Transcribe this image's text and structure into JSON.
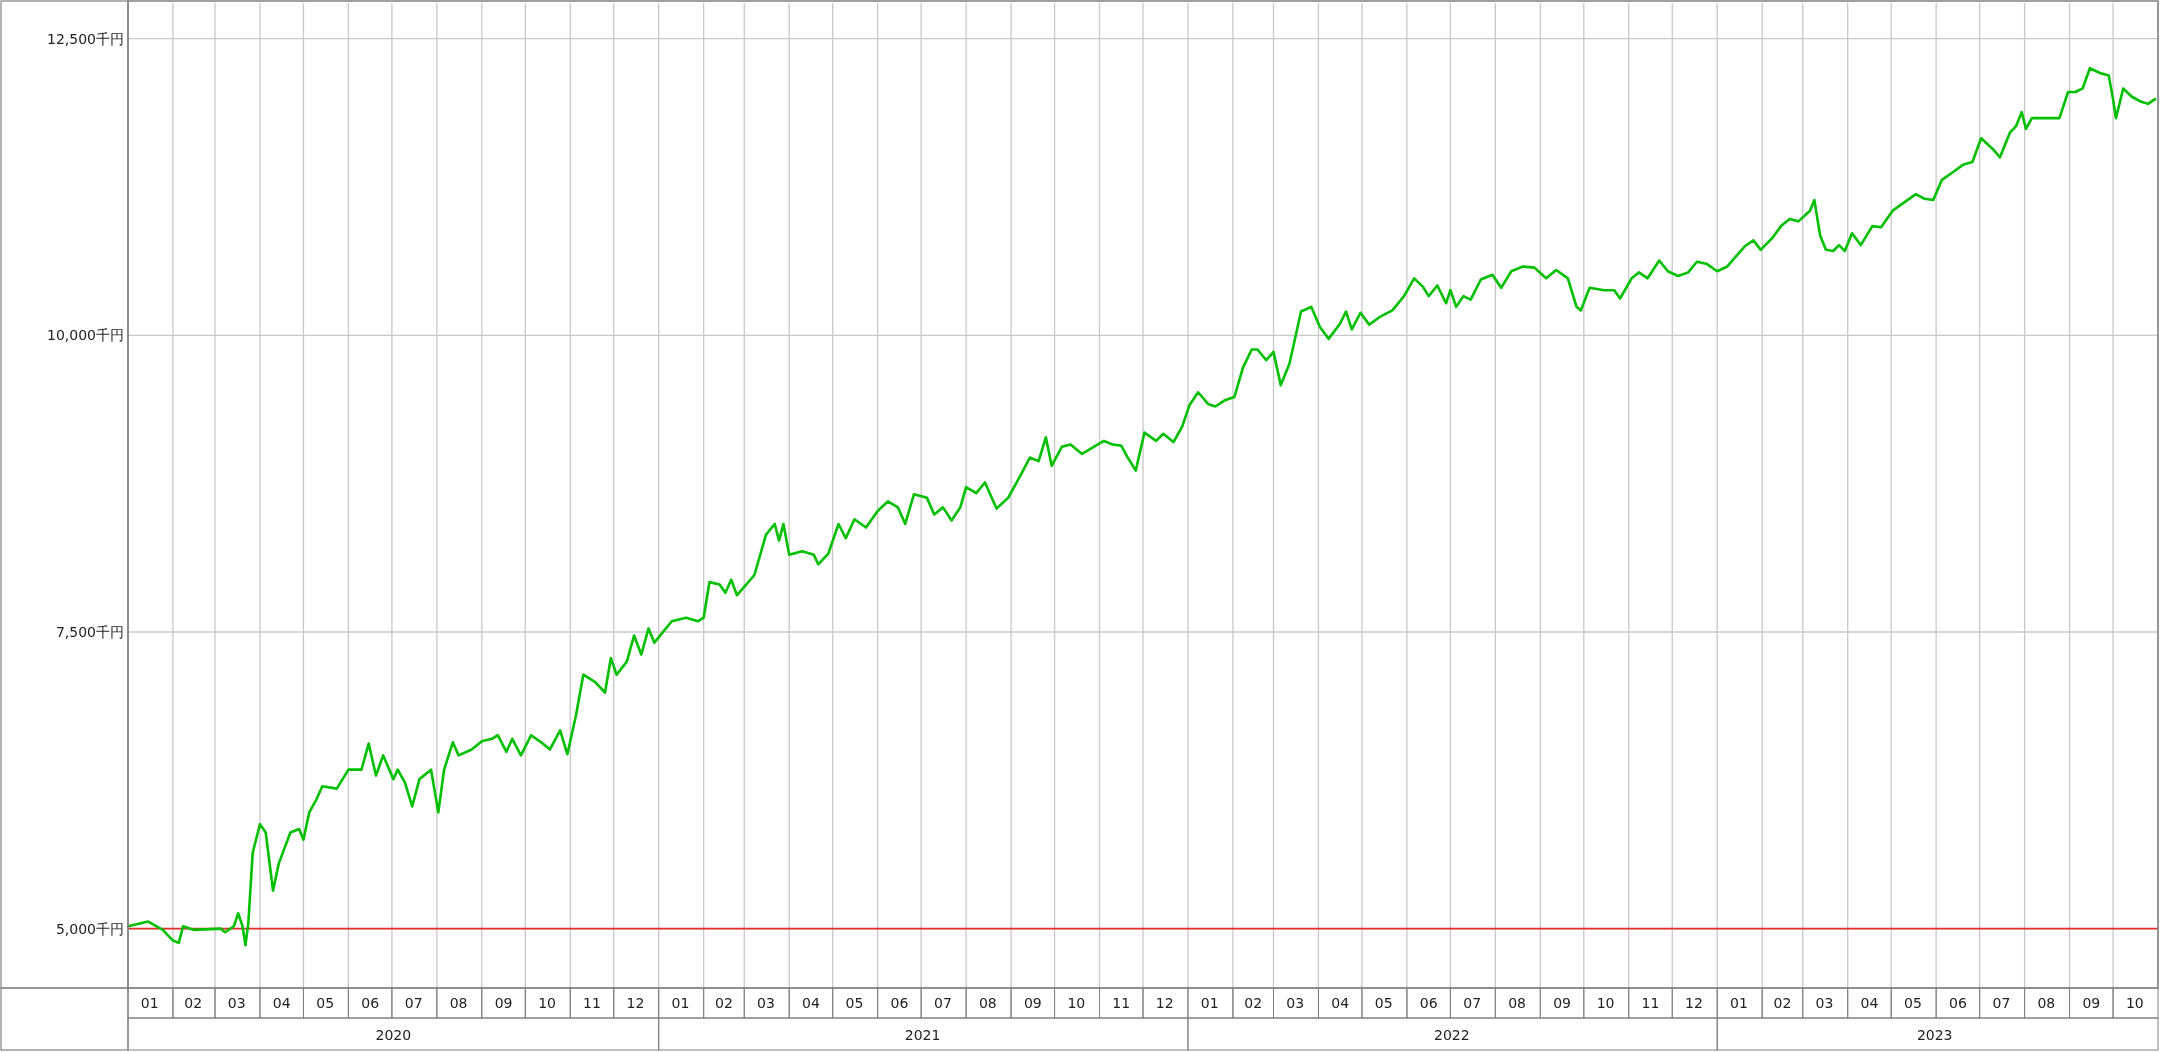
{
  "chart_data": {
    "type": "line",
    "x": [
      "2020-01-01",
      "2020-01-15",
      "2020-01-25",
      "2020-02-01",
      "2020-02-05",
      "2020-02-08",
      "2020-02-15",
      "2020-03-05",
      "2020-03-08",
      "2020-03-14",
      "2020-03-17",
      "2020-03-20",
      "2020-03-22",
      "2020-03-24",
      "2020-03-27",
      "2020-04-01",
      "2020-04-05",
      "2020-04-10",
      "2020-04-14",
      "2020-04-22",
      "2020-04-28",
      "2020-05-01",
      "2020-05-05",
      "2020-05-10",
      "2020-05-14",
      "2020-05-24",
      "2020-06-01",
      "2020-06-10",
      "2020-06-15",
      "2020-06-20",
      "2020-06-25",
      "2020-07-02",
      "2020-07-05",
      "2020-07-10",
      "2020-07-15",
      "2020-07-20",
      "2020-07-28",
      "2020-08-02",
      "2020-08-06",
      "2020-08-12",
      "2020-08-16",
      "2020-08-25",
      "2020-09-01",
      "2020-09-08",
      "2020-09-12",
      "2020-09-18",
      "2020-09-22",
      "2020-09-28",
      "2020-10-05",
      "2020-10-12",
      "2020-10-18",
      "2020-10-25",
      "2020-10-30",
      "2020-11-05",
      "2020-11-10",
      "2020-11-18",
      "2020-11-25",
      "2020-11-29",
      "2020-12-03",
      "2020-12-10",
      "2020-12-15",
      "2020-12-20",
      "2020-12-25",
      "2020-12-29",
      "2021-01-10",
      "2021-01-20",
      "2021-01-28",
      "2021-02-01",
      "2021-02-05",
      "2021-02-12",
      "2021-02-16",
      "2021-02-20",
      "2021-02-24",
      "2021-03-01",
      "2021-03-08",
      "2021-03-16",
      "2021-03-22",
      "2021-03-25",
      "2021-03-28",
      "2021-04-01",
      "2021-04-10",
      "2021-04-18",
      "2021-04-21",
      "2021-04-28",
      "2021-05-05",
      "2021-05-10",
      "2021-05-16",
      "2021-05-24",
      "2021-06-01",
      "2021-06-08",
      "2021-06-15",
      "2021-06-20",
      "2021-06-26",
      "2021-07-05",
      "2021-07-10",
      "2021-07-16",
      "2021-07-22",
      "2021-07-28",
      "2021-08-01",
      "2021-08-08",
      "2021-08-14",
      "2021-08-22",
      "2021-08-30",
      "2021-09-08",
      "2021-09-14",
      "2021-09-20",
      "2021-09-25",
      "2021-09-29",
      "2021-10-06",
      "2021-10-12",
      "2021-10-20",
      "2021-10-28",
      "2021-11-04",
      "2021-11-10",
      "2021-11-16",
      "2021-11-20",
      "2021-11-26",
      "2021-12-02",
      "2021-12-10",
      "2021-12-15",
      "2021-12-22",
      "2021-12-28",
      "2022-01-02",
      "2022-01-08",
      "2022-01-15",
      "2022-01-20",
      "2022-01-26",
      "2022-02-02",
      "2022-02-08",
      "2022-02-14",
      "2022-02-18",
      "2022-02-24",
      "2022-03-01",
      "2022-03-06",
      "2022-03-12",
      "2022-03-20",
      "2022-03-27",
      "2022-04-02",
      "2022-04-08",
      "2022-04-16",
      "2022-04-20",
      "2022-04-24",
      "2022-04-30",
      "2022-05-06",
      "2022-05-14",
      "2022-05-22",
      "2022-05-30",
      "2022-06-06",
      "2022-06-12",
      "2022-06-16",
      "2022-06-22",
      "2022-06-28",
      "2022-07-01",
      "2022-07-05",
      "2022-07-10",
      "2022-07-15",
      "2022-07-22",
      "2022-07-30",
      "2022-08-05",
      "2022-08-12",
      "2022-08-20",
      "2022-08-28",
      "2022-09-05",
      "2022-09-12",
      "2022-09-20",
      "2022-09-26",
      "2022-09-29",
      "2022-10-05",
      "2022-10-15",
      "2022-10-22",
      "2022-10-26",
      "2022-11-03",
      "2022-11-08",
      "2022-11-14",
      "2022-11-22",
      "2022-11-28",
      "2022-12-05",
      "2022-12-12",
      "2022-12-18",
      "2022-12-25",
      "2023-01-01",
      "2023-01-08",
      "2023-01-15",
      "2023-01-20",
      "2023-01-26",
      "2023-01-31",
      "2023-02-08",
      "2023-02-14",
      "2023-02-20",
      "2023-02-26",
      "2023-03-06",
      "2023-03-09",
      "2023-03-13",
      "2023-03-17",
      "2023-03-22",
      "2023-03-26",
      "2023-03-30",
      "2023-04-04",
      "2023-04-10",
      "2023-04-18",
      "2023-04-24",
      "2023-05-02",
      "2023-05-10",
      "2023-05-18",
      "2023-05-24",
      "2023-05-30",
      "2023-06-05",
      "2023-06-12",
      "2023-06-20",
      "2023-06-26",
      "2023-07-02",
      "2023-07-10",
      "2023-07-15",
      "2023-07-22",
      "2023-07-26",
      "2023-07-30",
      "2023-08-02",
      "2023-08-06",
      "2023-08-25",
      "2023-08-31",
      "2023-09-05",
      "2023-09-10",
      "2023-09-15",
      "2023-09-22",
      "2023-09-28",
      "2023-10-01",
      "2023-10-03",
      "2023-10-08",
      "2023-10-14",
      "2023-10-20",
      "2023-10-25",
      "2023-10-30"
    ],
    "series": [
      {
        "color": "#00c000",
        "values": [
          5020,
          5060,
          4990,
          4900,
          4880,
          5020,
          4990,
          5000,
          4970,
          5020,
          5130,
          5020,
          4860,
          5050,
          5640,
          5880,
          5810,
          5320,
          5550,
          5810,
          5840,
          5750,
          5980,
          6090,
          6200,
          6180,
          6340,
          6340,
          6560,
          6290,
          6460,
          6260,
          6340,
          6230,
          6030,
          6260,
          6340,
          5980,
          6340,
          6570,
          6460,
          6510,
          6580,
          6600,
          6630,
          6490,
          6600,
          6460,
          6630,
          6570,
          6510,
          6670,
          6470,
          6800,
          7140,
          7080,
          6990,
          7280,
          7140,
          7250,
          7470,
          7310,
          7530,
          7410,
          7590,
          7620,
          7590,
          7620,
          7920,
          7900,
          7830,
          7940,
          7810,
          7880,
          7980,
          8320,
          8410,
          8270,
          8410,
          8150,
          8180,
          8150,
          8070,
          8160,
          8410,
          8290,
          8450,
          8380,
          8520,
          8600,
          8550,
          8410,
          8660,
          8630,
          8490,
          8550,
          8440,
          8550,
          8720,
          8670,
          8760,
          8540,
          8630,
          8830,
          8970,
          8940,
          9140,
          8900,
          9060,
          9080,
          9000,
          9060,
          9110,
          9080,
          9070,
          8980,
          8860,
          9180,
          9110,
          9170,
          9100,
          9230,
          9410,
          9520,
          9420,
          9400,
          9450,
          9480,
          9730,
          9880,
          9880,
          9790,
          9860,
          9580,
          9760,
          10200,
          10240,
          10070,
          9970,
          10100,
          10200,
          10050,
          10190,
          10090,
          10160,
          10210,
          10330,
          10480,
          10410,
          10330,
          10420,
          10270,
          10380,
          10240,
          10330,
          10300,
          10470,
          10510,
          10400,
          10540,
          10580,
          10570,
          10480,
          10550,
          10480,
          10240,
          10210,
          10400,
          10380,
          10380,
          10310,
          10480,
          10530,
          10480,
          10630,
          10540,
          10500,
          10530,
          10620,
          10600,
          10540,
          10580,
          10680,
          10750,
          10800,
          10720,
          10820,
          10920,
          10980,
          10960,
          11050,
          11140,
          10840,
          10720,
          10710,
          10760,
          10710,
          10860,
          10760,
          10920,
          10910,
          11050,
          11120,
          11190,
          11150,
          11140,
          11310,
          11370,
          11440,
          11460,
          11660,
          11570,
          11500,
          11710,
          11760,
          11880,
          11740,
          11830,
          11830,
          12050,
          12050,
          12080,
          12250,
          12210,
          12190,
          11990,
          11830,
          12080,
          12010,
          11970,
          11950,
          11990
        ]
      }
    ],
    "xlim": [
      "2020-01-01",
      "2023-10-31"
    ],
    "ylim": [
      4500,
      12800
    ],
    "yticks": [
      {
        "value": 5000,
        "label": "5,000千円"
      },
      {
        "value": 7500,
        "label": "7,500千円"
      },
      {
        "value": 10000,
        "label": "10,000千円"
      },
      {
        "value": 12500,
        "label": "12,500千円"
      }
    ],
    "xticks": [
      {
        "value": "2020-01-16",
        "label": "01"
      },
      {
        "value": "2020-02-15",
        "label": "02"
      },
      {
        "value": "2020-03-16",
        "label": "03"
      },
      {
        "value": "2020-04-16",
        "label": "04"
      },
      {
        "value": "2020-05-16",
        "label": "05"
      },
      {
        "value": "2020-06-16",
        "label": "06"
      },
      {
        "value": "2020-07-16",
        "label": "07"
      },
      {
        "value": "2020-08-16",
        "label": "08"
      },
      {
        "value": "2020-09-16",
        "label": "09"
      },
      {
        "value": "2020-10-16",
        "label": "10"
      },
      {
        "value": "2020-11-16",
        "label": "11"
      },
      {
        "value": "2020-12-16",
        "label": "12"
      },
      {
        "value": "2021-01-16",
        "label": "01"
      },
      {
        "value": "2021-02-15",
        "label": "02"
      },
      {
        "value": "2021-03-16",
        "label": "03"
      },
      {
        "value": "2021-04-16",
        "label": "04"
      },
      {
        "value": "2021-05-16",
        "label": "05"
      },
      {
        "value": "2021-06-16",
        "label": "06"
      },
      {
        "value": "2021-07-16",
        "label": "07"
      },
      {
        "value": "2021-08-16",
        "label": "08"
      },
      {
        "value": "2021-09-16",
        "label": "09"
      },
      {
        "value": "2021-10-16",
        "label": "10"
      },
      {
        "value": "2021-11-16",
        "label": "11"
      },
      {
        "value": "2021-12-16",
        "label": "12"
      },
      {
        "value": "2022-01-16",
        "label": "01"
      },
      {
        "value": "2022-02-15",
        "label": "02"
      },
      {
        "value": "2022-03-16",
        "label": "03"
      },
      {
        "value": "2022-04-16",
        "label": "04"
      },
      {
        "value": "2022-05-16",
        "label": "05"
      },
      {
        "value": "2022-06-16",
        "label": "06"
      },
      {
        "value": "2022-07-16",
        "label": "07"
      },
      {
        "value": "2022-08-16",
        "label": "08"
      },
      {
        "value": "2022-09-16",
        "label": "09"
      },
      {
        "value": "2022-10-16",
        "label": "10"
      },
      {
        "value": "2022-11-16",
        "label": "11"
      },
      {
        "value": "2022-12-16",
        "label": "12"
      },
      {
        "value": "2023-01-16",
        "label": "01"
      },
      {
        "value": "2023-02-15",
        "label": "02"
      },
      {
        "value": "2023-03-16",
        "label": "03"
      },
      {
        "value": "2023-04-16",
        "label": "04"
      },
      {
        "value": "2023-05-16",
        "label": "05"
      },
      {
        "value": "2023-06-16",
        "label": "06"
      },
      {
        "value": "2023-07-16",
        "label": "07"
      },
      {
        "value": "2023-08-16",
        "label": "08"
      },
      {
        "value": "2023-09-16",
        "label": "09"
      },
      {
        "value": "2023-10-16",
        "label": "10"
      }
    ],
    "x2ticks": [
      {
        "value": "2020-07-02",
        "label": "2020"
      },
      {
        "value": "2021-07-02",
        "label": "2021"
      },
      {
        "value": "2022-07-02",
        "label": "2022"
      },
      {
        "value": "2023-05-31",
        "label": "2023"
      }
    ],
    "x2lim": [
      "2020-01-01",
      "2023-10-31"
    ],
    "grid": true,
    "ref_lines": [
      {
        "axis": "y",
        "value": 5000,
        "color": "#e0302c"
      }
    ]
  }
}
